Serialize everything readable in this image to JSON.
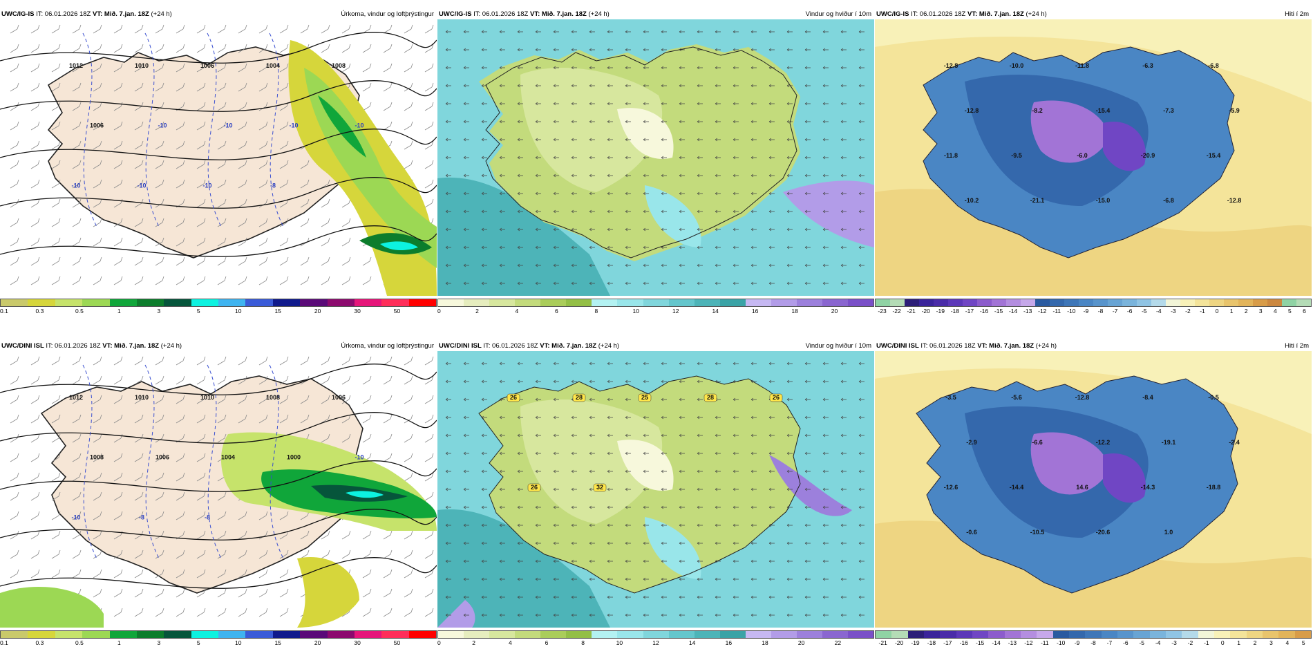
{
  "colors": {
    "precip": [
      "#c9c96b",
      "#d6d63b",
      "#c6e36b",
      "#9cd854",
      "#10a63a",
      "#0c7d2c",
      "#06553b",
      "#0df2e0",
      "#3fb4f0",
      "#3a5bd8",
      "#101a8c",
      "#5a0a78",
      "#8c0a6e",
      "#e6167a",
      "#ff2e5a",
      "#ff0000"
    ],
    "wind": [
      "#f7f8dc",
      "#e6edbe",
      "#d7e79e",
      "#c3db7c",
      "#aacd5a",
      "#93bf46",
      "#b3f2f2",
      "#99e6ea",
      "#80d6dc",
      "#64c6cc",
      "#4db4b8",
      "#3aa3a6",
      "#c6b8f2",
      "#b29ce8",
      "#9c80dc",
      "#8a66d0",
      "#7a50c8"
    ],
    "temp": [
      "#8fd3a4",
      "#b4dcb6",
      "#2c1e78",
      "#3a249a",
      "#4a2ca8",
      "#5c38b8",
      "#7046c4",
      "#8c5ccc",
      "#a274d6",
      "#b48ee0",
      "#c6a8ea",
      "#2a5aa0",
      "#3468ac",
      "#3e76b8",
      "#4a86c4",
      "#5894cc",
      "#68a4d4",
      "#7ab4dc",
      "#90c4e4",
      "#b4daea",
      "#f2f5d8",
      "#f8f1b8",
      "#f4e49a",
      "#eed582",
      "#e8c46c",
      "#e2b45a",
      "#d89c48",
      "#cc8840"
    ]
  },
  "panels": [
    {
      "header_model": "UWC/IG-IS",
      "header_it": " IT: 06.01.2026 18Z ",
      "header_vt": "VT: Mið. 7.jan. 18Z",
      "header_lead": " (+24 h)",
      "header_title": "Úrkoma, vindur og loftþrýstingur",
      "type": "precip",
      "ticks": [
        "0.1",
        "0.3",
        "0.5",
        "1",
        "3",
        "5",
        "10",
        "15",
        "20",
        "30",
        "50"
      ],
      "labels": [
        "1012",
        "1010",
        "1006",
        "1004",
        "1008",
        "1006",
        "-10",
        "-10",
        "-10",
        "-10",
        "-10",
        "-10",
        "-10",
        "-8"
      ]
    },
    {
      "header_model": "UWC/IG-IS",
      "header_it": " IT: 06.01.2026 18Z ",
      "header_vt": "VT: Mið. 7.jan. 18Z",
      "header_lead": " (+24 h)",
      "header_title": "Vindur og hviður í 10m",
      "type": "wind",
      "ticks": [
        "0",
        "2",
        "4",
        "6",
        "8",
        "10",
        "12",
        "14",
        "16",
        "18",
        "20"
      ],
      "labels": []
    },
    {
      "header_model": "UWC/IG-IS",
      "header_it": " IT: 06.01.2026 18Z ",
      "header_vt": "VT: Mið. 7.jan. 18Z",
      "header_lead": " (+24 h)",
      "header_title": "Hiti í 2m",
      "type": "temp",
      "ticks": [
        "-23",
        "-22",
        "-21",
        "-20",
        "-19",
        "-18",
        "-17",
        "-16",
        "-15",
        "-14",
        "-13",
        "-12",
        "-11",
        "-10",
        "-9",
        "-8",
        "-7",
        "-6",
        "-5",
        "-4",
        "-3",
        "-2",
        "-1",
        "0",
        "1",
        "2",
        "3",
        "4",
        "5",
        "6"
      ],
      "labels": [
        "-12.8",
        "-10.0",
        "-11.8",
        "-6.3",
        "-6.8",
        "-12.8",
        "-8.2",
        "-15.4",
        "-7.3",
        "-5.9",
        "-11.8",
        "-9.5",
        "-6.0",
        "-20.9",
        "-15.4",
        "-10.2",
        "-21.1",
        "-15.0",
        "-6.8",
        "-12.8"
      ]
    },
    {
      "header_model": "UWC/DINI ISL",
      "header_it": " IT: 06.01.2026 18Z ",
      "header_vt": "VT: Mið. 7.jan. 18Z",
      "header_lead": " (+24 h)",
      "header_title": "Úrkoma, vindur og loftþrýstingur",
      "type": "precip",
      "ticks": [
        "0.1",
        "0.3",
        "0.5",
        "1",
        "3",
        "5",
        "10",
        "15",
        "20",
        "30",
        "50"
      ],
      "labels": [
        "1012",
        "1010",
        "1010",
        "1008",
        "1006",
        "1008",
        "1006",
        "1004",
        "1000",
        "-10",
        "-10",
        "-8",
        "-8"
      ]
    },
    {
      "header_model": "UWC/DINI ISL",
      "header_it": " IT: 06.01.2026 18Z ",
      "header_vt": "VT: Mið. 7.jan. 18Z",
      "header_lead": " (+24 h)",
      "header_title": "Vindur og hviður í 10m",
      "type": "wind",
      "ticks": [
        "0",
        "2",
        "4",
        "6",
        "8",
        "10",
        "12",
        "14",
        "16",
        "18",
        "20",
        "22"
      ],
      "labels": [
        "26",
        "28",
        "25",
        "28",
        "26",
        "26",
        "32"
      ]
    },
    {
      "header_model": "UWC/DINI ISL",
      "header_it": " IT: 06.01.2026 18Z ",
      "header_vt": "VT: Mið. 7.jan. 18Z",
      "header_lead": " (+24 h)",
      "header_title": "Hiti í 2m",
      "type": "temp",
      "ticks": [
        "-21",
        "-20",
        "-19",
        "-18",
        "-17",
        "-16",
        "-15",
        "-14",
        "-13",
        "-12",
        "-11",
        "-10",
        "-9",
        "-8",
        "-7",
        "-6",
        "-5",
        "-4",
        "-3",
        "-2",
        "-1",
        "0",
        "1",
        "2",
        "3",
        "4",
        "5"
      ],
      "labels": [
        "-3.5",
        "-5.6",
        "-12.8",
        "-8.4",
        "-0.5",
        "-2.9",
        "-6.6",
        "-12.2",
        "-19.1",
        "-2.4",
        "-12.6",
        "-14.4",
        "14.6",
        "-14.3",
        "-18.8",
        "-0.6",
        "-10.5",
        "-20.6",
        "1.0"
      ]
    }
  ]
}
